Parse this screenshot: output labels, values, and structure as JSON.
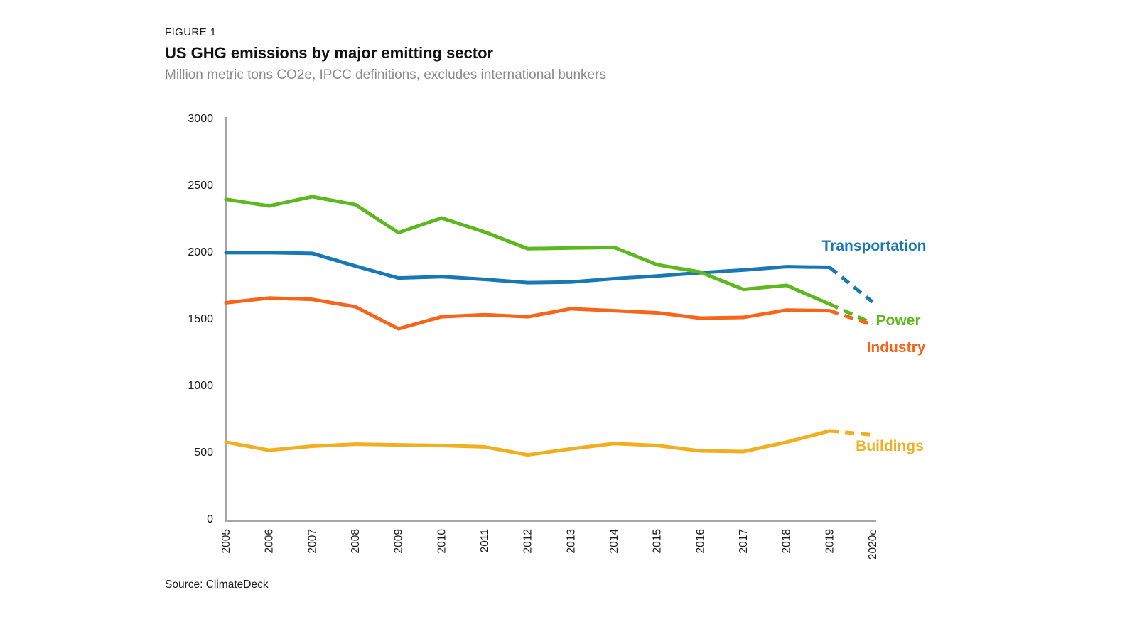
{
  "header": {
    "figure_label": "FIGURE 1",
    "title": "US GHG emissions by major emitting sector",
    "subtitle": "Million metric tons CO2e, IPCC definitions, excludes international bunkers"
  },
  "source": "Source: ClimateDeck",
  "chart_data": {
    "type": "line",
    "title": "US GHG emissions by major emitting sector",
    "ylabel": "Million metric tons CO2e",
    "xlabel": "",
    "x": [
      "2005",
      "2006",
      "2007",
      "2008",
      "2009",
      "2010",
      "2011",
      "2012",
      "2013",
      "2014",
      "2015",
      "2016",
      "2017",
      "2018",
      "2019",
      "2020e"
    ],
    "ylim": [
      0,
      3000
    ],
    "yticks": [
      0,
      500,
      1000,
      1500,
      2000,
      2500,
      3000
    ],
    "grid": false,
    "axis_color": "#A6A6A6",
    "tick_label_color": "#1a1a1a",
    "legend_position": "direct-labels-at-line-end",
    "final_segment_dashed": true,
    "final_segment_note": "2020e is an estimate, drawn dashed",
    "series": [
      {
        "name": "Transportation",
        "color": "#1878B4",
        "values": [
          1990,
          1990,
          1985,
          1890,
          1800,
          1810,
          1790,
          1765,
          1770,
          1795,
          1815,
          1840,
          1860,
          1885,
          1880,
          1620
        ],
        "label": {
          "x": 1230,
          "y": 353
        }
      },
      {
        "name": "Power",
        "color": "#5CB81E",
        "values": [
          2390,
          2340,
          2410,
          2350,
          2140,
          2250,
          2145,
          2020,
          2025,
          2030,
          1900,
          1845,
          1715,
          1745,
          1605,
          1460
        ],
        "label": {
          "x": 1264,
          "y": 458
        }
      },
      {
        "name": "Industry",
        "color": "#F4661A",
        "values": [
          1615,
          1650,
          1640,
          1585,
          1420,
          1510,
          1525,
          1510,
          1570,
          1555,
          1540,
          1500,
          1505,
          1560,
          1555,
          1450
        ],
        "label": {
          "x": 1261,
          "y": 496
        }
      },
      {
        "name": "Buildings",
        "color": "#F0AF21",
        "values": [
          570,
          510,
          540,
          555,
          550,
          545,
          535,
          475,
          520,
          560,
          545,
          505,
          500,
          570,
          655,
          625
        ],
        "label": {
          "x": 1252,
          "y": 635
        }
      }
    ]
  }
}
